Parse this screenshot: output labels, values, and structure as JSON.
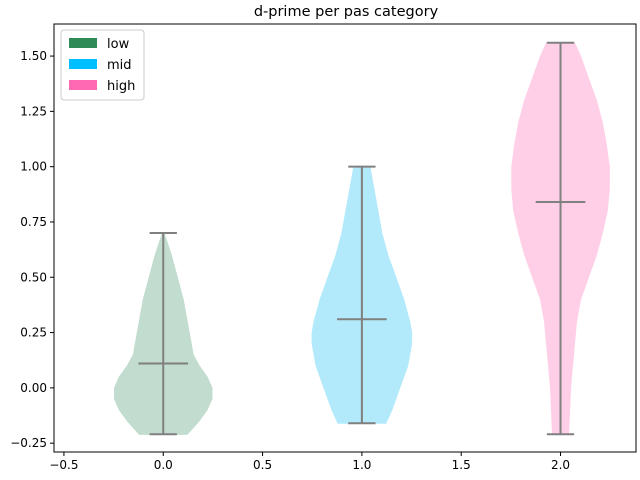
{
  "chart_data": {
    "type": "violin",
    "title": "d-prime per pas category",
    "xlabel": "",
    "ylabel": "",
    "xlim": [
      -0.55,
      2.38
    ],
    "ylim": [
      -0.29,
      1.645
    ],
    "xticks": [
      -0.5,
      0.0,
      0.5,
      1.0,
      1.5,
      2.0
    ],
    "xtick_labels": [
      "−0.5",
      "0.0",
      "0.5",
      "1.0",
      "1.5",
      "2.0"
    ],
    "yticks": [
      -0.25,
      0.0,
      0.25,
      0.5,
      0.75,
      1.0,
      1.25,
      1.5
    ],
    "ytick_labels": [
      "−0.25",
      "0.00",
      "0.25",
      "0.50",
      "0.75",
      "1.00",
      "1.25",
      "1.50"
    ],
    "legend": {
      "placement": "top-left"
    },
    "series": [
      {
        "name": "low",
        "position": 0.0,
        "color": "#2e8b57",
        "fill_color": "#c2ddcf",
        "min": -0.21,
        "max": 0.7,
        "median": 0.11,
        "profile": [
          [
            -0.21,
            0.12
          ],
          [
            -0.15,
            0.18
          ],
          [
            -0.1,
            0.22
          ],
          [
            -0.05,
            0.245
          ],
          [
            0.0,
            0.245
          ],
          [
            0.05,
            0.22
          ],
          [
            0.1,
            0.18
          ],
          [
            0.15,
            0.15
          ],
          [
            0.2,
            0.14
          ],
          [
            0.25,
            0.13
          ],
          [
            0.3,
            0.12
          ],
          [
            0.35,
            0.11
          ],
          [
            0.4,
            0.1
          ],
          [
            0.45,
            0.085
          ],
          [
            0.5,
            0.07
          ],
          [
            0.55,
            0.055
          ],
          [
            0.6,
            0.04
          ],
          [
            0.65,
            0.022
          ],
          [
            0.7,
            0.003
          ]
        ]
      },
      {
        "name": "mid",
        "position": 1.0,
        "color": "#00bfff",
        "fill_color": "#b2eafb",
        "min": -0.16,
        "max": 1.0,
        "median": 0.31,
        "profile": [
          [
            -0.16,
            0.12
          ],
          [
            -0.1,
            0.15
          ],
          [
            0.0,
            0.19
          ],
          [
            0.1,
            0.23
          ],
          [
            0.2,
            0.25
          ],
          [
            0.25,
            0.25
          ],
          [
            0.3,
            0.24
          ],
          [
            0.4,
            0.21
          ],
          [
            0.5,
            0.17
          ],
          [
            0.6,
            0.13
          ],
          [
            0.7,
            0.1
          ],
          [
            0.8,
            0.08
          ],
          [
            0.9,
            0.06
          ],
          [
            0.95,
            0.05
          ],
          [
            1.0,
            0.04
          ]
        ]
      },
      {
        "name": "high",
        "position": 2.0,
        "color": "#ff69b4",
        "fill_color": "#ffcfe7",
        "min": -0.21,
        "max": 1.56,
        "median": 0.84,
        "profile": [
          [
            -0.21,
            0.04
          ],
          [
            -0.1,
            0.045
          ],
          [
            0.0,
            0.05
          ],
          [
            0.1,
            0.06
          ],
          [
            0.2,
            0.07
          ],
          [
            0.3,
            0.08
          ],
          [
            0.4,
            0.1
          ],
          [
            0.5,
            0.14
          ],
          [
            0.6,
            0.18
          ],
          [
            0.7,
            0.21
          ],
          [
            0.8,
            0.235
          ],
          [
            0.9,
            0.245
          ],
          [
            1.0,
            0.245
          ],
          [
            1.1,
            0.23
          ],
          [
            1.2,
            0.21
          ],
          [
            1.3,
            0.18
          ],
          [
            1.4,
            0.14
          ],
          [
            1.5,
            0.1
          ],
          [
            1.56,
            0.07
          ]
        ]
      }
    ]
  }
}
